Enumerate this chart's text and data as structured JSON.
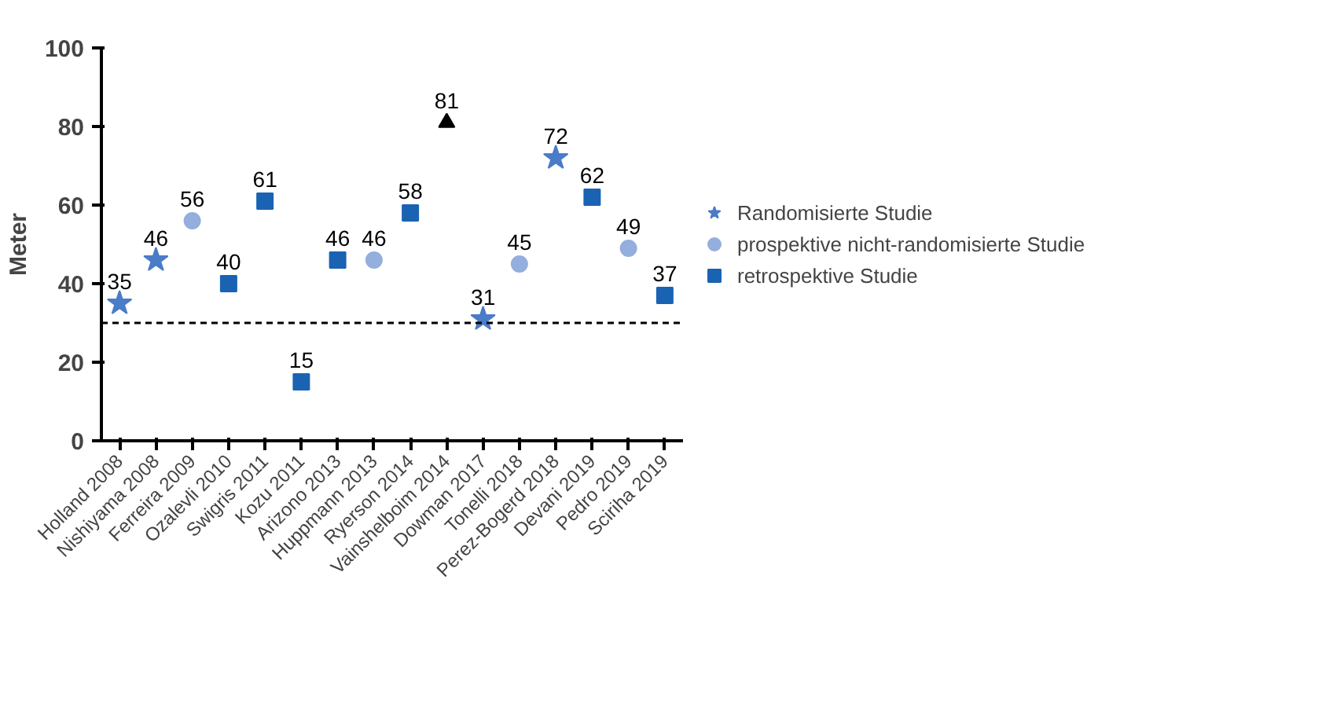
{
  "chart_data": {
    "type": "scatter",
    "ylabel": "Meter",
    "categories": [
      "Holland 2008",
      "Nishiyama 2008",
      "Ferreira 2009",
      "Ozalevli 2010",
      "Swigris 2011",
      "Kozu 2011",
      "Arizono 2013",
      "Huppmann 2013",
      "Ryerson 2014",
      "Vainshelboim 2014",
      "Dowman 2017",
      "Tonelli 2018",
      "Perez-Bogerd 2018",
      "Devani 2019",
      "Pedro 2019",
      "Sciriha 2019"
    ],
    "series": [
      {
        "name": "Randomisierte Studie",
        "color": "#4a7cc7",
        "marker": "star",
        "values": [
          35,
          46,
          null,
          null,
          null,
          null,
          null,
          null,
          null,
          null,
          31,
          null,
          72,
          null,
          null,
          null
        ]
      },
      {
        "name": "prospektive nicht-randomisierte Studie",
        "color": "#94aedd",
        "marker": "circle",
        "values": [
          null,
          null,
          56,
          null,
          null,
          null,
          null,
          46,
          null,
          null,
          null,
          45,
          null,
          null,
          49,
          null
        ]
      },
      {
        "name": "retrospektive Studie",
        "color": "#1a63b3",
        "marker": "square",
        "values": [
          null,
          null,
          null,
          40,
          61,
          15,
          46,
          null,
          58,
          null,
          null,
          null,
          null,
          62,
          null,
          37
        ]
      },
      {
        "color": "#000000",
        "marker": "triangle",
        "values": [
          null,
          null,
          null,
          null,
          null,
          null,
          null,
          null,
          null,
          81,
          null,
          null,
          null,
          null,
          null,
          null
        ]
      }
    ],
    "ylim": [
      0,
      100
    ],
    "yticks": [
      0,
      20,
      40,
      60,
      80,
      100
    ],
    "grid": false,
    "legend": "right",
    "data_labels": true,
    "ref_lines": [
      {
        "axis": "y",
        "value": 30,
        "line_style": "dashed",
        "color": "#000000"
      }
    ]
  }
}
